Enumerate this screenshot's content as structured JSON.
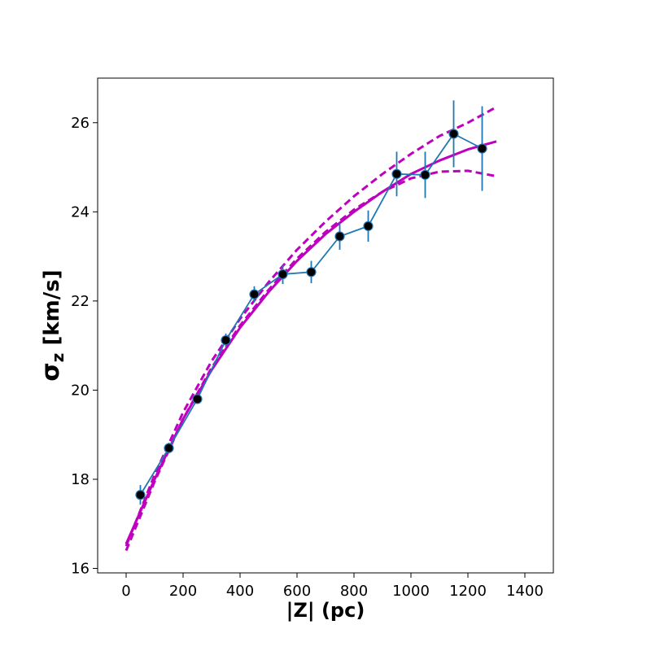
{
  "chart_data": {
    "type": "scatter",
    "xlabel": "|Z| (pc)",
    "ylabel": {
      "main": "σ",
      "sub": "z",
      "unit": " [km/s]"
    },
    "xlim": [
      -100,
      1500
    ],
    "ylim": [
      15.9,
      27.0
    ],
    "xticks": [
      0,
      200,
      400,
      600,
      800,
      1000,
      1200,
      1400
    ],
    "yticks": [
      16,
      18,
      20,
      22,
      24,
      26
    ],
    "grid": false,
    "colors": {
      "data": "#1f77b4",
      "marker": "#000000",
      "fit": "#bf00bf"
    },
    "series": [
      {
        "kind": "data-with-errorbars",
        "x": [
          50,
          150,
          250,
          350,
          450,
          550,
          650,
          750,
          850,
          950,
          1050,
          1150,
          1250
        ],
        "y": [
          17.65,
          18.7,
          19.8,
          21.12,
          22.15,
          22.6,
          22.65,
          23.45,
          23.68,
          24.85,
          24.83,
          25.75,
          25.42
        ],
        "yerr": [
          0.22,
          0.12,
          0.1,
          0.15,
          0.18,
          0.22,
          0.25,
          0.3,
          0.35,
          0.5,
          0.52,
          0.75,
          0.95
        ]
      },
      {
        "kind": "fit",
        "style": "solid",
        "x": [
          0,
          100,
          200,
          300,
          400,
          500,
          600,
          700,
          800,
          900,
          1000,
          1100,
          1200,
          1300
        ],
        "y": [
          16.55,
          18.0,
          19.35,
          20.45,
          21.4,
          22.2,
          22.9,
          23.5,
          24.0,
          24.45,
          24.85,
          25.15,
          25.4,
          25.58
        ]
      },
      {
        "kind": "fit-upper",
        "style": "dashed",
        "x": [
          0,
          100,
          200,
          300,
          400,
          500,
          600,
          700,
          800,
          900,
          1000,
          1100,
          1200,
          1300
        ],
        "y": [
          16.5,
          18.1,
          19.5,
          20.65,
          21.6,
          22.42,
          23.15,
          23.78,
          24.35,
          24.85,
          25.3,
          25.7,
          26.0,
          26.35
        ]
      },
      {
        "kind": "fit-lower",
        "style": "dashed",
        "x": [
          0,
          100,
          200,
          300,
          400,
          500,
          600,
          700,
          800,
          900,
          1000,
          1100,
          1200,
          1300
        ],
        "y": [
          16.4,
          17.95,
          19.35,
          20.5,
          21.45,
          22.25,
          22.95,
          23.55,
          24.05,
          24.45,
          24.75,
          24.9,
          24.92,
          24.8
        ]
      }
    ]
  }
}
